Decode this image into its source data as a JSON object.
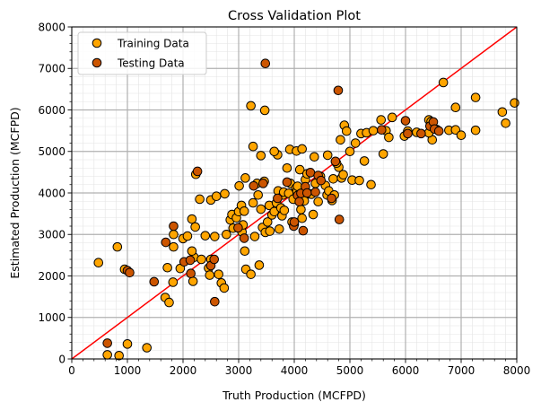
{
  "chart_data": {
    "type": "scatter",
    "title": "Cross Validation Plot",
    "xlabel": "Truth Production (MCFPD)",
    "ylabel": "Estimated Production (MCFPD)",
    "xlim": [
      0,
      8000
    ],
    "ylim": [
      0,
      8000
    ],
    "x_ticks": [
      "0",
      "1000",
      "2000",
      "3000",
      "4000",
      "5000",
      "6000",
      "7000",
      "8000"
    ],
    "y_ticks": [
      "0",
      "1000",
      "2000",
      "3000",
      "4000",
      "5000",
      "6000",
      "7000",
      "8000"
    ],
    "major_step": 1000,
    "minor_step": 200,
    "grid": true,
    "legend_position": "top-left",
    "reference_line": {
      "x": [
        0,
        8000
      ],
      "y": [
        0,
        8000
      ],
      "color": "#ff0000"
    },
    "series": [
      {
        "name": "Training Data",
        "color": "#ffa500",
        "points": [
          [
            480,
            2320
          ],
          [
            820,
            2700
          ],
          [
            950,
            2160
          ],
          [
            640,
            100
          ],
          [
            850,
            80
          ],
          [
            1350,
            270
          ],
          [
            1000,
            360
          ],
          [
            1680,
            1480
          ],
          [
            1750,
            1360
          ],
          [
            1720,
            2200
          ],
          [
            1820,
            1850
          ],
          [
            1830,
            3000
          ],
          [
            1830,
            2700
          ],
          [
            1950,
            2180
          ],
          [
            2000,
            2900
          ],
          [
            2080,
            2960
          ],
          [
            2200,
            2450
          ],
          [
            2180,
            1870
          ],
          [
            2160,
            2600
          ],
          [
            2160,
            3370
          ],
          [
            2220,
            3180
          ],
          [
            2230,
            4450
          ],
          [
            2300,
            3850
          ],
          [
            2330,
            2400
          ],
          [
            2400,
            2970
          ],
          [
            2460,
            2190
          ],
          [
            2480,
            2020
          ],
          [
            2500,
            3830
          ],
          [
            2500,
            2400
          ],
          [
            2570,
            2950
          ],
          [
            2600,
            3920
          ],
          [
            2640,
            2040
          ],
          [
            2690,
            1830
          ],
          [
            2740,
            1710
          ],
          [
            2750,
            3980
          ],
          [
            2780,
            3000
          ],
          [
            2850,
            3350
          ],
          [
            2900,
            3150
          ],
          [
            2880,
            3480
          ],
          [
            2960,
            3400
          ],
          [
            3000,
            3550
          ],
          [
            3010,
            4170
          ],
          [
            3050,
            3700
          ],
          [
            3060,
            3060
          ],
          [
            3080,
            3230
          ],
          [
            3100,
            3560
          ],
          [
            3110,
            2600
          ],
          [
            3120,
            4360
          ],
          [
            3130,
            2160
          ],
          [
            3220,
            2040
          ],
          [
            3260,
            3760
          ],
          [
            3290,
            2950
          ],
          [
            3350,
            3950
          ],
          [
            3370,
            2260
          ],
          [
            3400,
            3610
          ],
          [
            3430,
            3170
          ],
          [
            3460,
            4280
          ],
          [
            3480,
            3050
          ],
          [
            3520,
            3300
          ],
          [
            3550,
            3700
          ],
          [
            3560,
            3080
          ],
          [
            3600,
            3470
          ],
          [
            3640,
            3550
          ],
          [
            3680,
            3760
          ],
          [
            3700,
            4920
          ],
          [
            3710,
            4050
          ],
          [
            3730,
            3130
          ],
          [
            3760,
            3640
          ],
          [
            3780,
            3450
          ],
          [
            3800,
            3950
          ],
          [
            3810,
            4020
          ],
          [
            3820,
            3580
          ],
          [
            3870,
            4600
          ],
          [
            3900,
            3990
          ],
          [
            3920,
            5050
          ],
          [
            3930,
            4230
          ],
          [
            3960,
            3300
          ],
          [
            3980,
            3850
          ],
          [
            4000,
            3250
          ],
          [
            4030,
            4120
          ],
          [
            4050,
            4040
          ],
          [
            4060,
            4160
          ],
          [
            4080,
            3950
          ],
          [
            4100,
            4560
          ],
          [
            4120,
            3600
          ],
          [
            4140,
            3390
          ],
          [
            4180,
            3810
          ],
          [
            4200,
            4320
          ],
          [
            4230,
            4460
          ],
          [
            4270,
            3980
          ],
          [
            4310,
            3970
          ],
          [
            4340,
            3480
          ],
          [
            4360,
            4870
          ],
          [
            4380,
            4230
          ],
          [
            4430,
            3790
          ],
          [
            4470,
            4400
          ],
          [
            4560,
            4180
          ],
          [
            4590,
            3950
          ],
          [
            4620,
            4050
          ],
          [
            4680,
            3820
          ],
          [
            4700,
            4340
          ],
          [
            4720,
            3950
          ],
          [
            4800,
            4620
          ],
          [
            4830,
            5280
          ],
          [
            4850,
            4360
          ],
          [
            4880,
            4440
          ],
          [
            4900,
            5630
          ],
          [
            4940,
            5490
          ],
          [
            5000,
            5000
          ],
          [
            5040,
            4310
          ],
          [
            5100,
            5200
          ],
          [
            5170,
            4300
          ],
          [
            5200,
            5430
          ],
          [
            5260,
            4770
          ],
          [
            5300,
            5450
          ],
          [
            5380,
            4200
          ],
          [
            5420,
            5500
          ],
          [
            5560,
            5760
          ],
          [
            5600,
            4940
          ],
          [
            5650,
            5500
          ],
          [
            5700,
            5340
          ],
          [
            5760,
            5820
          ],
          [
            5980,
            5370
          ],
          [
            6040,
            5490
          ],
          [
            6420,
            5760
          ],
          [
            6460,
            5720
          ],
          [
            6480,
            5280
          ],
          [
            6560,
            5530
          ],
          [
            6680,
            6660
          ],
          [
            6780,
            5510
          ],
          [
            6900,
            5520
          ],
          [
            6900,
            6060
          ],
          [
            7000,
            5390
          ],
          [
            7260,
            6300
          ],
          [
            7260,
            5510
          ],
          [
            7740,
            5950
          ],
          [
            7800,
            5680
          ],
          [
            7960,
            6170
          ],
          [
            3220,
            6100
          ],
          [
            3260,
            5120
          ],
          [
            3330,
            4230
          ],
          [
            3400,
            4900
          ],
          [
            3640,
            5000
          ],
          [
            3470,
            5990
          ],
          [
            4040,
            5010
          ],
          [
            4140,
            5060
          ],
          [
            4600,
            4910
          ],
          [
            4760,
            4720
          ],
          [
            6200,
            5460
          ],
          [
            6420,
            5450
          ]
        ]
      },
      {
        "name": "Testing Data",
        "color": "#cc5500",
        "points": [
          [
            640,
            380
          ],
          [
            1000,
            2130
          ],
          [
            1040,
            2080
          ],
          [
            1480,
            1860
          ],
          [
            1690,
            2810
          ],
          [
            1830,
            3200
          ],
          [
            2020,
            2340
          ],
          [
            2130,
            2380
          ],
          [
            2140,
            2060
          ],
          [
            2260,
            4520
          ],
          [
            2500,
            2250
          ],
          [
            2560,
            2400
          ],
          [
            2570,
            1380
          ],
          [
            2990,
            3160
          ],
          [
            3100,
            2910
          ],
          [
            3270,
            4170
          ],
          [
            3440,
            4230
          ],
          [
            3480,
            7120
          ],
          [
            3700,
            3870
          ],
          [
            3870,
            4260
          ],
          [
            3990,
            3200
          ],
          [
            4000,
            3300
          ],
          [
            4060,
            3940
          ],
          [
            4090,
            3790
          ],
          [
            4120,
            3990
          ],
          [
            4160,
            3090
          ],
          [
            4200,
            4150
          ],
          [
            4230,
            4000
          ],
          [
            4290,
            4490
          ],
          [
            4380,
            4020
          ],
          [
            4430,
            4420
          ],
          [
            4480,
            4300
          ],
          [
            4670,
            3870
          ],
          [
            4740,
            4760
          ],
          [
            4790,
            6470
          ],
          [
            4810,
            3360
          ],
          [
            5570,
            5520
          ],
          [
            6000,
            5740
          ],
          [
            6040,
            5430
          ],
          [
            6280,
            5430
          ],
          [
            6440,
            5610
          ],
          [
            6500,
            5710
          ],
          [
            6520,
            5540
          ],
          [
            6600,
            5490
          ]
        ]
      }
    ]
  }
}
